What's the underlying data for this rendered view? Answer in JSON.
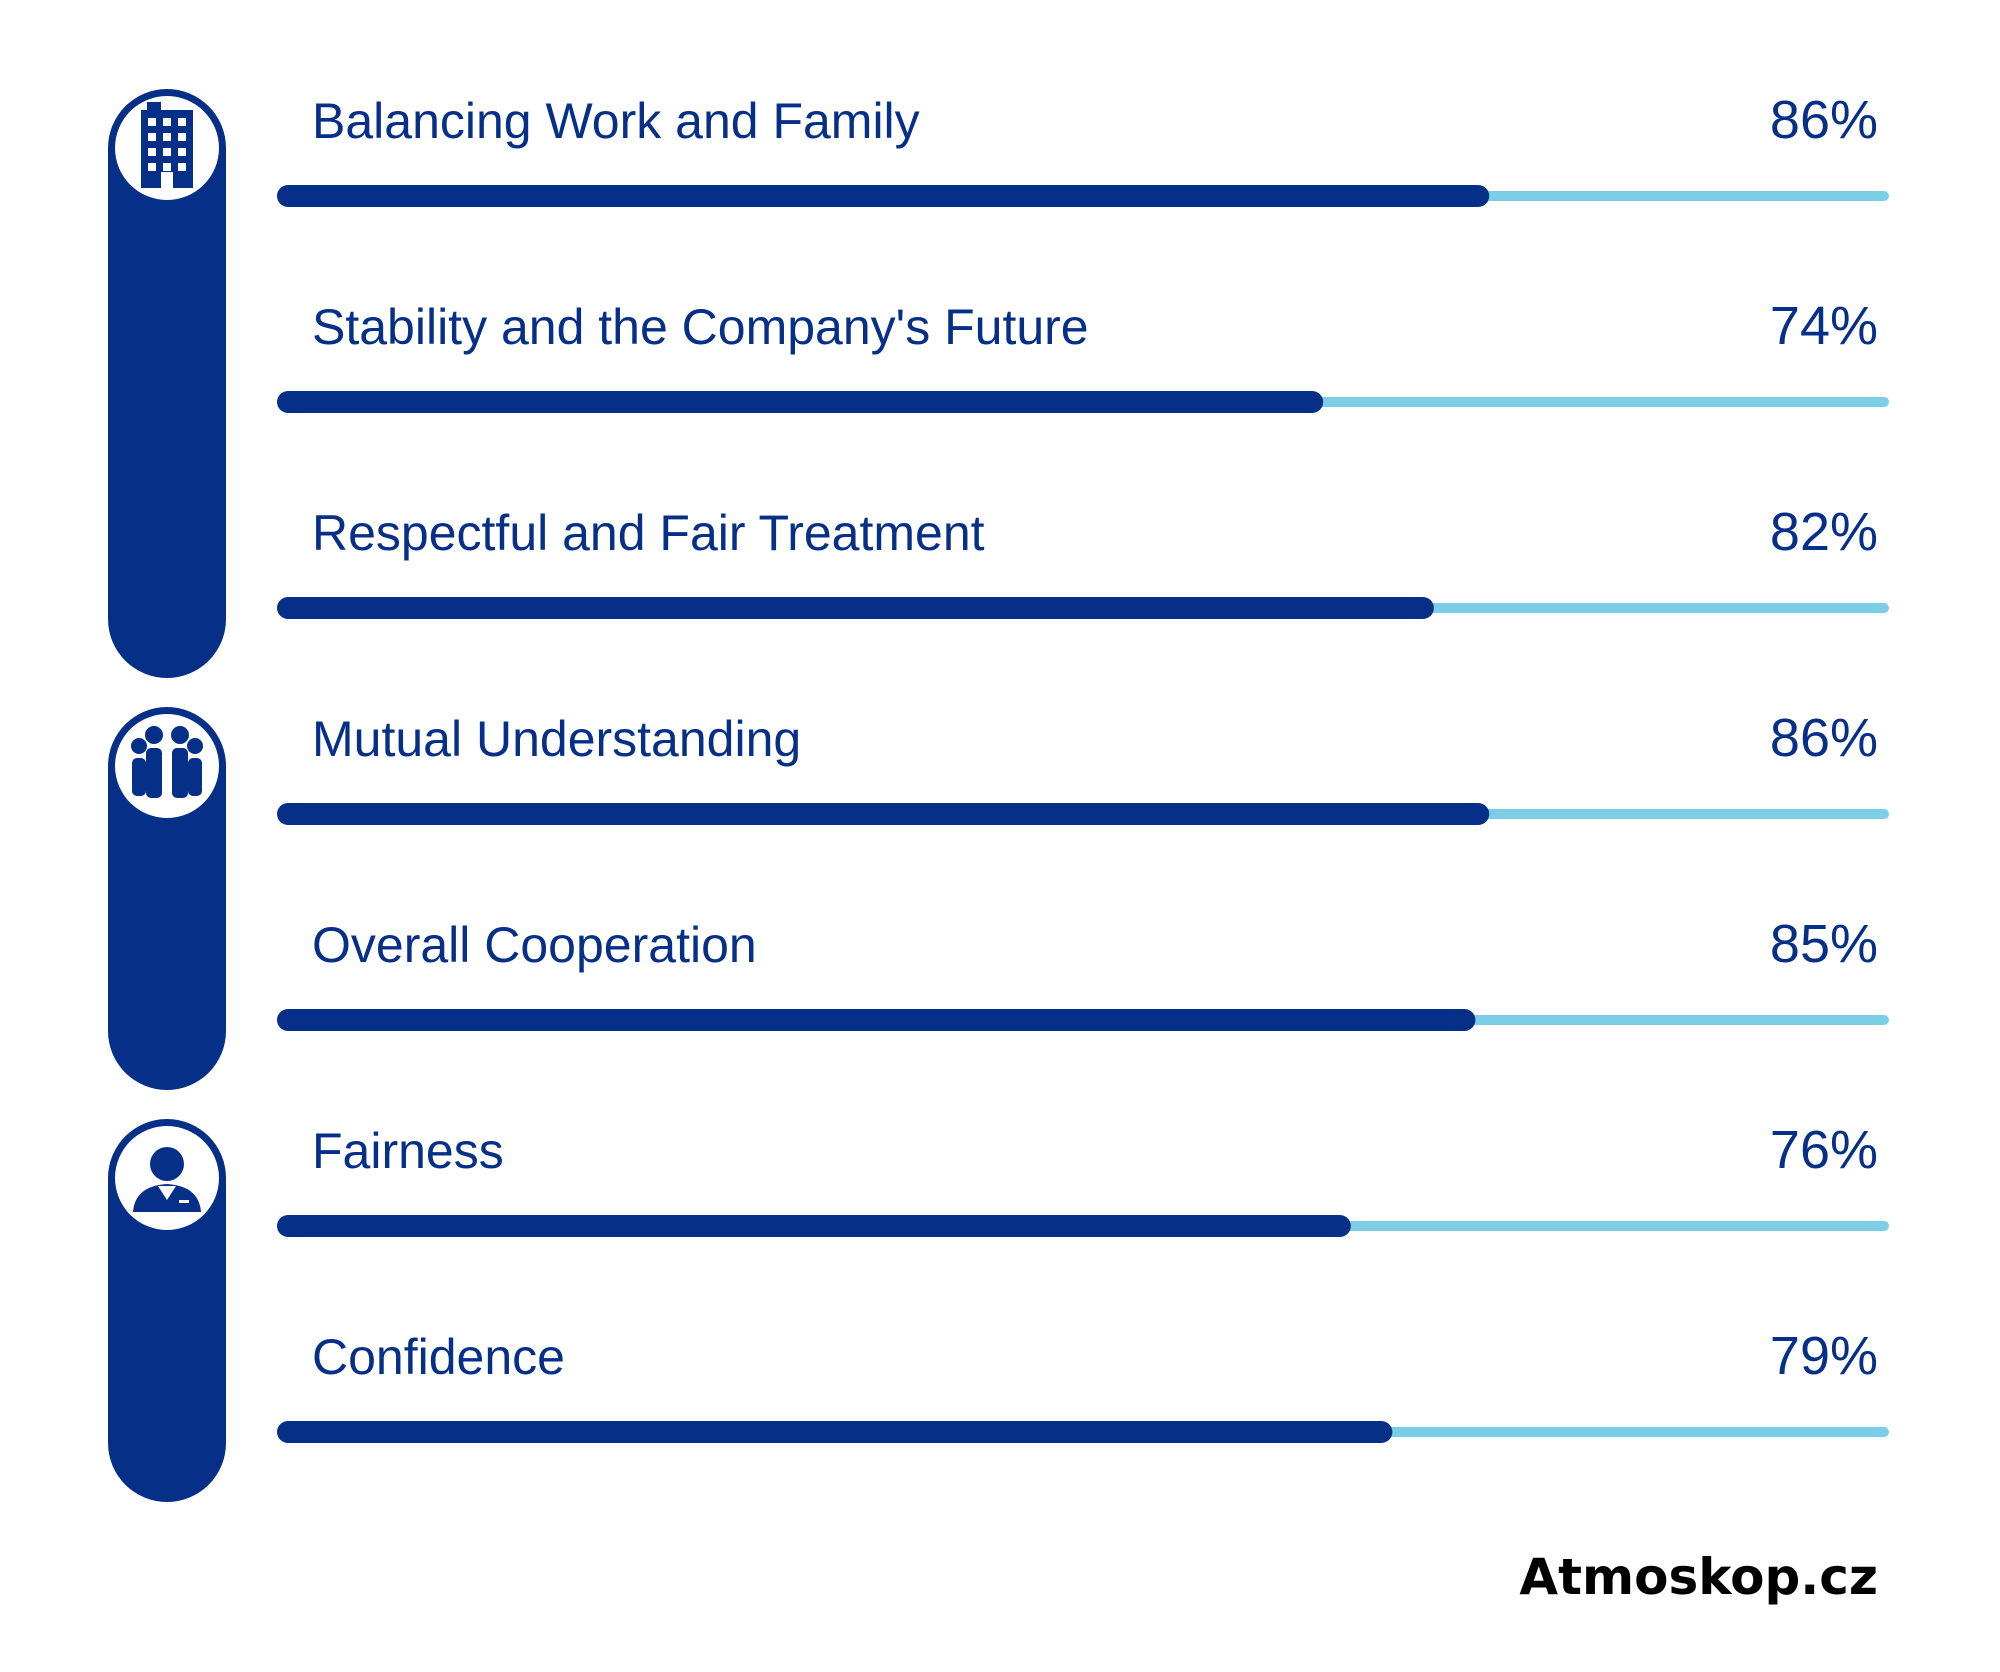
{
  "chart_data": {
    "type": "bar",
    "orientation": "horizontal",
    "categories": [
      "Balancing Work and Family",
      "Stability and the Company's Future",
      "Respectful and Fair Treatment",
      "Mutual Understanding",
      "Overall Cooperation",
      "Fairness",
      "Confidence"
    ],
    "values": [
      86,
      74,
      82,
      86,
      85,
      76,
      79
    ],
    "value_labels": [
      "86%",
      "74%",
      "82%",
      "86%",
      "85%",
      "76%",
      "79%"
    ],
    "unit": "%",
    "xlim": [
      0,
      100
    ],
    "grid": false,
    "groups": [
      {
        "icon": "office-building-icon",
        "categories": [
          0,
          1,
          2
        ]
      },
      {
        "icon": "team-icon",
        "categories": [
          3,
          4
        ]
      },
      {
        "icon": "person-in-suit-icon",
        "categories": [
          5,
          6
        ]
      }
    ],
    "colors": {
      "bar": "#062f87",
      "track": "#7ccde6",
      "text": "#062f87"
    }
  },
  "brand": "Atmoskop.cz"
}
